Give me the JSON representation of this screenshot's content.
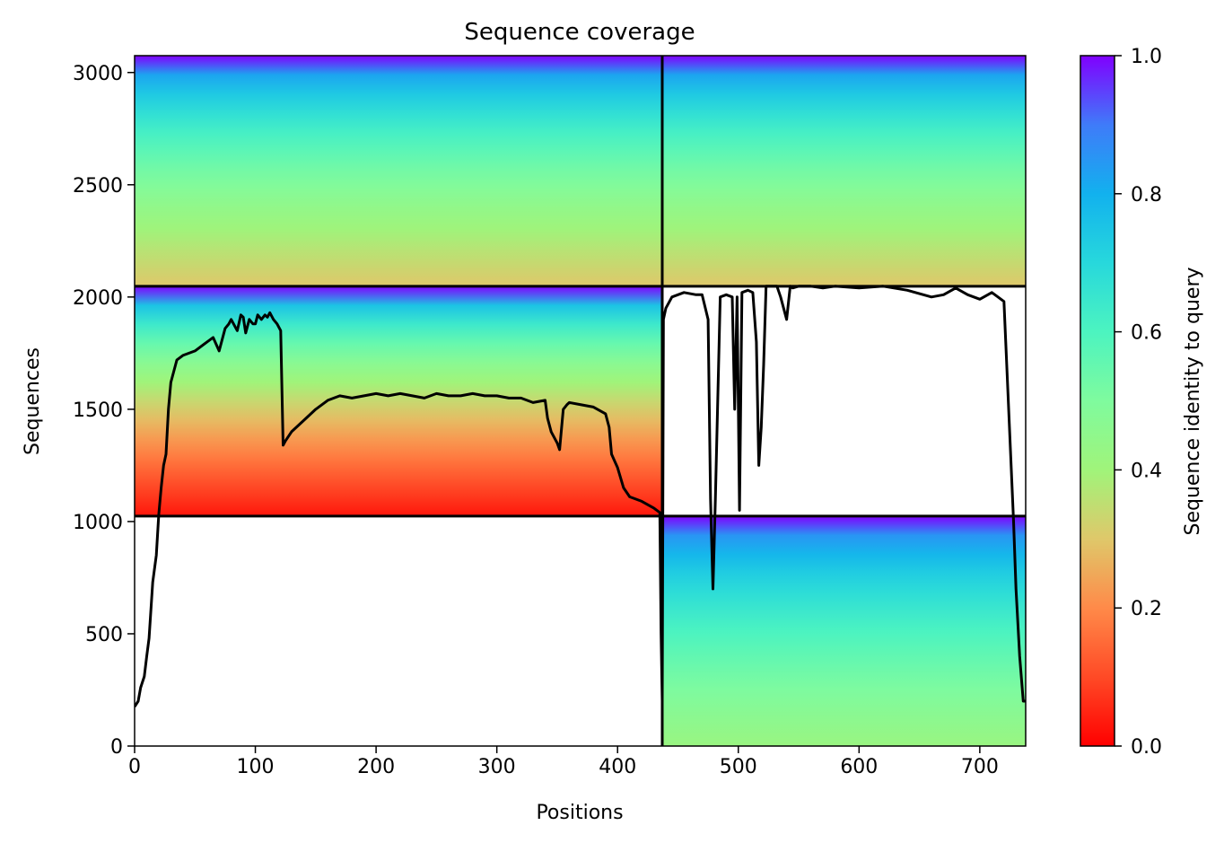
{
  "chart_data": {
    "type": "heatmap",
    "title": "Sequence coverage",
    "xlabel": "Positions",
    "ylabel": "Sequences",
    "colorbar_label": "Sequence identity to query",
    "xlim": [
      0,
      738
    ],
    "ylim": [
      0,
      3075
    ],
    "xticks": [
      "0",
      "100",
      "200",
      "300",
      "400",
      "500",
      "600",
      "700"
    ],
    "yticks": [
      "0",
      "500",
      "1000",
      "1500",
      "2000",
      "2500",
      "3000"
    ],
    "colorbar_ticks": [
      "0.0",
      "0.2",
      "0.4",
      "0.6",
      "0.8",
      "1.0"
    ],
    "colormap": "rainbow",
    "chain_boundary_x": 437,
    "block_boundaries_y": [
      1024,
      2048
    ],
    "blocks": [
      {
        "name": "paired",
        "y": [
          2048,
          3075
        ],
        "x": [
          0,
          738
        ],
        "identity_top": 1.0,
        "identity_bottom": 0.3
      },
      {
        "name": "chain-A-unpaired",
        "y": [
          1024,
          2048
        ],
        "x": [
          0,
          437
        ],
        "identity_top": 1.0,
        "identity_bottom": 0.03
      },
      {
        "name": "chain-B-unpaired",
        "y": [
          0,
          1024
        ],
        "x": [
          437,
          738
        ],
        "identity_top": 1.0,
        "identity_bottom": 0.42
      }
    ],
    "coverage_line": {
      "x": [
        0,
        3,
        5,
        8,
        10,
        12,
        15,
        18,
        20,
        22,
        24,
        26,
        28,
        30,
        35,
        40,
        50,
        60,
        65,
        70,
        75,
        78,
        80,
        85,
        88,
        90,
        92,
        95,
        98,
        100,
        102,
        105,
        108,
        110,
        112,
        115,
        118,
        121,
        123,
        125,
        130,
        140,
        150,
        160,
        170,
        180,
        190,
        200,
        210,
        220,
        230,
        240,
        250,
        260,
        270,
        280,
        290,
        300,
        310,
        320,
        330,
        340,
        342,
        345,
        350,
        352,
        355,
        358,
        360,
        370,
        380,
        390,
        393,
        395,
        400,
        405,
        410,
        420,
        430,
        435,
        436,
        437,
        438,
        440,
        445,
        455,
        465,
        470,
        475,
        477,
        479,
        481,
        485,
        490,
        495,
        497,
        499,
        501,
        503,
        508,
        512,
        515,
        517,
        519,
        521,
        523,
        525,
        528,
        532,
        535,
        540,
        543,
        545,
        550,
        555,
        560,
        570,
        580,
        600,
        620,
        640,
        660,
        670,
        680,
        690,
        700,
        710,
        715,
        720,
        728,
        730,
        733,
        736,
        738
      ],
      "y": [
        175,
        200,
        260,
        310,
        400,
        480,
        730,
        850,
        1030,
        1150,
        1250,
        1300,
        1500,
        1620,
        1720,
        1740,
        1760,
        1800,
        1820,
        1760,
        1860,
        1880,
        1900,
        1850,
        1920,
        1910,
        1840,
        1900,
        1880,
        1880,
        1920,
        1900,
        1920,
        1910,
        1930,
        1900,
        1880,
        1850,
        1340,
        1360,
        1400,
        1450,
        1500,
        1540,
        1560,
        1550,
        1560,
        1570,
        1560,
        1570,
        1560,
        1550,
        1570,
        1560,
        1560,
        1570,
        1560,
        1560,
        1550,
        1550,
        1530,
        1540,
        1460,
        1400,
        1350,
        1320,
        1500,
        1520,
        1530,
        1520,
        1510,
        1480,
        1420,
        1300,
        1240,
        1150,
        1110,
        1090,
        1060,
        1040,
        500,
        200,
        1900,
        1950,
        2000,
        2020,
        2010,
        2010,
        1900,
        1100,
        700,
        1100,
        2000,
        2010,
        2000,
        1500,
        2000,
        1050,
        2020,
        2030,
        2020,
        1800,
        1250,
        1420,
        1700,
        2048,
        2048,
        2048,
        2048,
        2000,
        1900,
        2048,
        2040,
        2048,
        2048,
        2048,
        2040,
        2048,
        2040,
        2048,
        2030,
        2000,
        2010,
        2040,
        2010,
        1990,
        2020,
        2000,
        1980,
        1000,
        700,
        400,
        200,
        200
      ]
    },
    "line_color": "#000000"
  }
}
